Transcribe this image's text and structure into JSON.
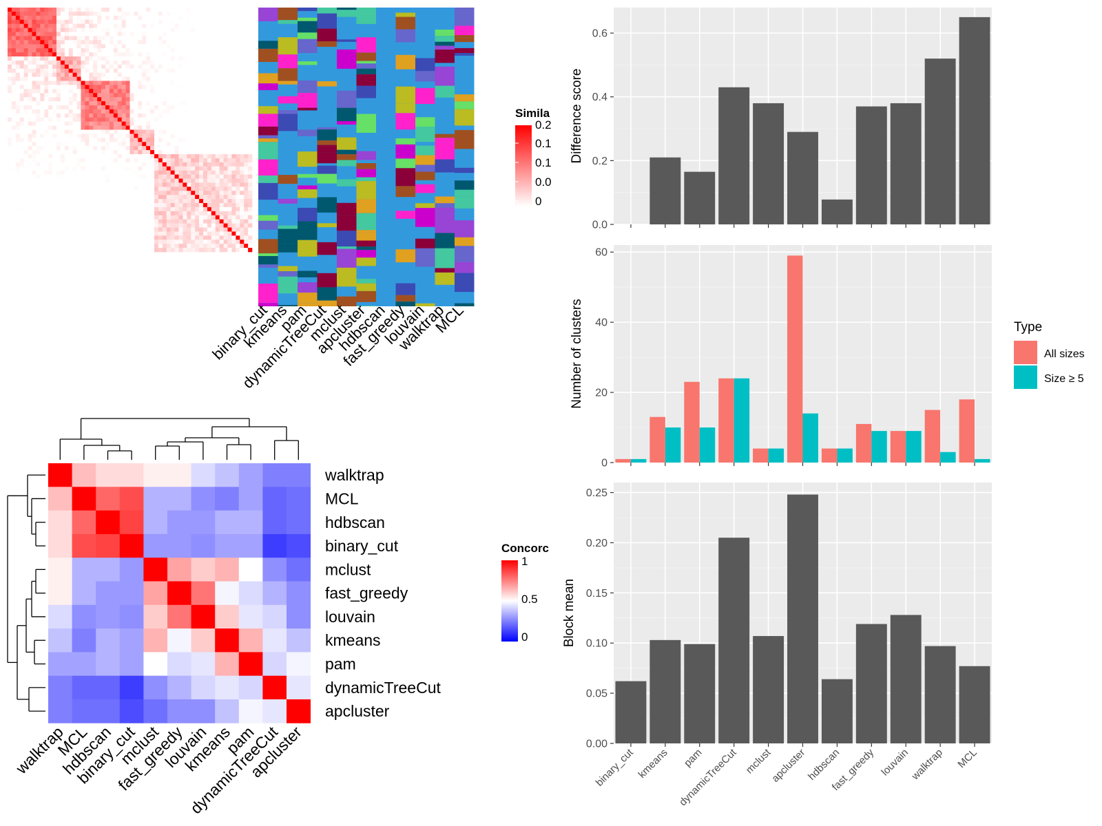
{
  "similarity_panel": {
    "legend_title": "Simila",
    "legend_ticks": [
      "0.2",
      "0.1",
      "0.1",
      "0.0",
      "0"
    ],
    "column_labels": [
      "binary_cut",
      "kmeans",
      "pam",
      "dynamicTreeCut",
      "mclust",
      "apcluster",
      "hdbscan",
      "fast_greedy",
      "louvain",
      "walktrap",
      "MCL"
    ]
  },
  "concordance_panel": {
    "legend_title": "Concorc",
    "legend_ticks": [
      "1",
      "0.5",
      "0"
    ],
    "methods": [
      "walktrap",
      "MCL",
      "hdbscan",
      "binary_cut",
      "mclust",
      "fast_greedy",
      "louvain",
      "kmeans",
      "pam",
      "dynamicTreeCut",
      "apcluster"
    ],
    "matrix": [
      [
        1.0,
        0.63,
        0.57,
        0.57,
        0.53,
        0.53,
        0.43,
        0.38,
        0.32,
        0.25,
        0.25
      ],
      [
        0.63,
        1.0,
        0.8,
        0.85,
        0.35,
        0.35,
        0.28,
        0.25,
        0.32,
        0.2,
        0.22
      ],
      [
        0.57,
        0.8,
        1.0,
        0.87,
        0.35,
        0.3,
        0.3,
        0.35,
        0.35,
        0.2,
        0.22
      ],
      [
        0.57,
        0.85,
        0.87,
        1.0,
        0.3,
        0.3,
        0.28,
        0.32,
        0.32,
        0.12,
        0.15
      ],
      [
        0.53,
        0.35,
        0.35,
        0.3,
        1.0,
        0.68,
        0.6,
        0.65,
        0.5,
        0.28,
        0.22
      ],
      [
        0.53,
        0.35,
        0.3,
        0.3,
        0.68,
        1.0,
        0.77,
        0.48,
        0.43,
        0.35,
        0.28
      ],
      [
        0.43,
        0.28,
        0.3,
        0.28,
        0.6,
        0.77,
        1.0,
        0.6,
        0.45,
        0.42,
        0.28
      ],
      [
        0.38,
        0.25,
        0.35,
        0.32,
        0.65,
        0.48,
        0.6,
        1.0,
        0.65,
        0.45,
        0.38
      ],
      [
        0.32,
        0.32,
        0.35,
        0.32,
        0.5,
        0.43,
        0.45,
        0.65,
        1.0,
        0.42,
        0.48
      ],
      [
        0.25,
        0.2,
        0.2,
        0.12,
        0.28,
        0.35,
        0.42,
        0.45,
        0.42,
        1.0,
        0.45
      ],
      [
        0.25,
        0.22,
        0.22,
        0.15,
        0.22,
        0.28,
        0.28,
        0.38,
        0.48,
        0.45,
        1.0
      ]
    ]
  },
  "chart_data": [
    {
      "type": "bar",
      "categories": [
        "binary_cut",
        "kmeans",
        "pam",
        "dynamicTreeCut",
        "mclust",
        "apcluster",
        "hdbscan",
        "fast_greedy",
        "louvain",
        "walktrap",
        "MCL"
      ],
      "values": [
        0,
        0.21,
        0.165,
        0.43,
        0.38,
        0.29,
        0.078,
        0.37,
        0.38,
        0.52,
        0.65
      ],
      "ylabel": "Difference score",
      "ylim": [
        0,
        0.68
      ],
      "yticks": [
        0.0,
        0.2,
        0.4,
        0.6
      ],
      "ytick_labels": [
        "0.0",
        "0.2",
        "0.4",
        "0.6"
      ],
      "bar_color": "#595959",
      "grid": true
    },
    {
      "type": "bar",
      "categories": [
        "binary_cut",
        "kmeans",
        "pam",
        "dynamicTreeCut",
        "mclust",
        "apcluster",
        "hdbscan",
        "fast_greedy",
        "louvain",
        "walktrap",
        "MCL"
      ],
      "series": [
        {
          "name": "All sizes",
          "color": "#F8766D",
          "values": [
            1,
            13,
            23,
            24,
            4,
            59,
            4,
            11,
            9,
            15,
            18
          ]
        },
        {
          "name": "Size ≥ 5",
          "color": "#00BFC4",
          "values": [
            1,
            10,
            10,
            24,
            4,
            14,
            4,
            9,
            9,
            3,
            1
          ]
        }
      ],
      "ylabel": "Number of clusters",
      "ylim": [
        0,
        62
      ],
      "yticks": [
        0,
        20,
        40,
        60
      ],
      "ytick_labels": [
        "0",
        "20",
        "40",
        "60"
      ],
      "legend_title": "Type",
      "legend_position": "right",
      "grid": true
    },
    {
      "type": "bar",
      "categories": [
        "binary_cut",
        "kmeans",
        "pam",
        "dynamicTreeCut",
        "mclust",
        "apcluster",
        "hdbscan",
        "fast_greedy",
        "louvain",
        "walktrap",
        "MCL"
      ],
      "values": [
        0.062,
        0.103,
        0.099,
        0.205,
        0.107,
        0.248,
        0.064,
        0.119,
        0.128,
        0.097,
        0.077
      ],
      "ylabel": "Block mean",
      "ylim": [
        0,
        0.26
      ],
      "yticks": [
        0.0,
        0.05,
        0.1,
        0.15,
        0.2,
        0.25
      ],
      "ytick_labels": [
        "0.00",
        "0.05",
        "0.10",
        "0.15",
        "0.20",
        "0.25"
      ],
      "bar_color": "#595959",
      "grid": true
    }
  ]
}
